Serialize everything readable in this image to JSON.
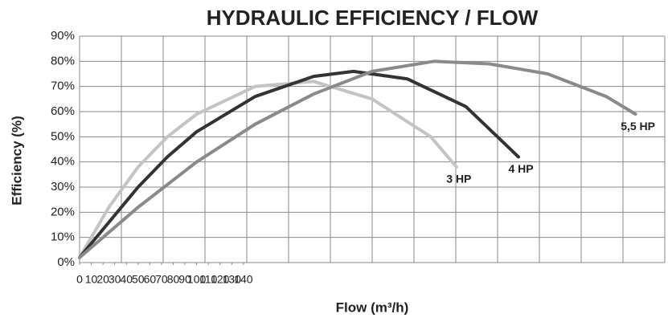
{
  "chart_data": {
    "type": "line",
    "title": "HYDRAULIC EFFICIENCY / FLOW",
    "x_label": "Flow (m³/h)",
    "y_label": "Efficiency (%)",
    "xlim": [
      0,
      500
    ],
    "xticks": [
      0,
      10,
      20,
      30,
      40,
      50,
      60,
      70,
      80,
      90,
      100,
      110,
      120,
      130,
      140
    ],
    "ylim": [
      0,
      90
    ],
    "yticks": [
      {
        "value": 0,
        "label": "0%"
      },
      {
        "value": 10,
        "label": "10%"
      },
      {
        "value": 20,
        "label": "20%"
      },
      {
        "value": 30,
        "label": "30%"
      },
      {
        "value": 40,
        "label": "40%"
      },
      {
        "value": 50,
        "label": "50%"
      },
      {
        "value": 60,
        "label": "60%"
      },
      {
        "value": 70,
        "label": "70%"
      },
      {
        "value": 80,
        "label": "80%"
      },
      {
        "value": 90,
        "label": "90%"
      }
    ],
    "grid": true,
    "series": [
      {
        "name": "3 HP",
        "color": "#c4c4c4",
        "x": [
          0,
          25,
          50,
          75,
          100,
          150,
          200,
          250,
          300,
          322
        ],
        "values": [
          2,
          22,
          38,
          50,
          59,
          70,
          72,
          65,
          50,
          38
        ]
      },
      {
        "name": "4 HP",
        "color": "#333333",
        "x": [
          0,
          25,
          50,
          75,
          100,
          150,
          200,
          234,
          280,
          330,
          375
        ],
        "values": [
          2,
          16,
          30,
          42,
          52,
          66,
          74,
          76,
          73,
          62,
          42
        ]
      },
      {
        "name": "5,5 HP",
        "color": "#8a8a8a",
        "x": [
          0,
          50,
          100,
          150,
          200,
          250,
          303,
          350,
          400,
          450,
          475
        ],
        "values": [
          2,
          22,
          40,
          55,
          67,
          76,
          80,
          79,
          75,
          66,
          59
        ]
      }
    ]
  }
}
